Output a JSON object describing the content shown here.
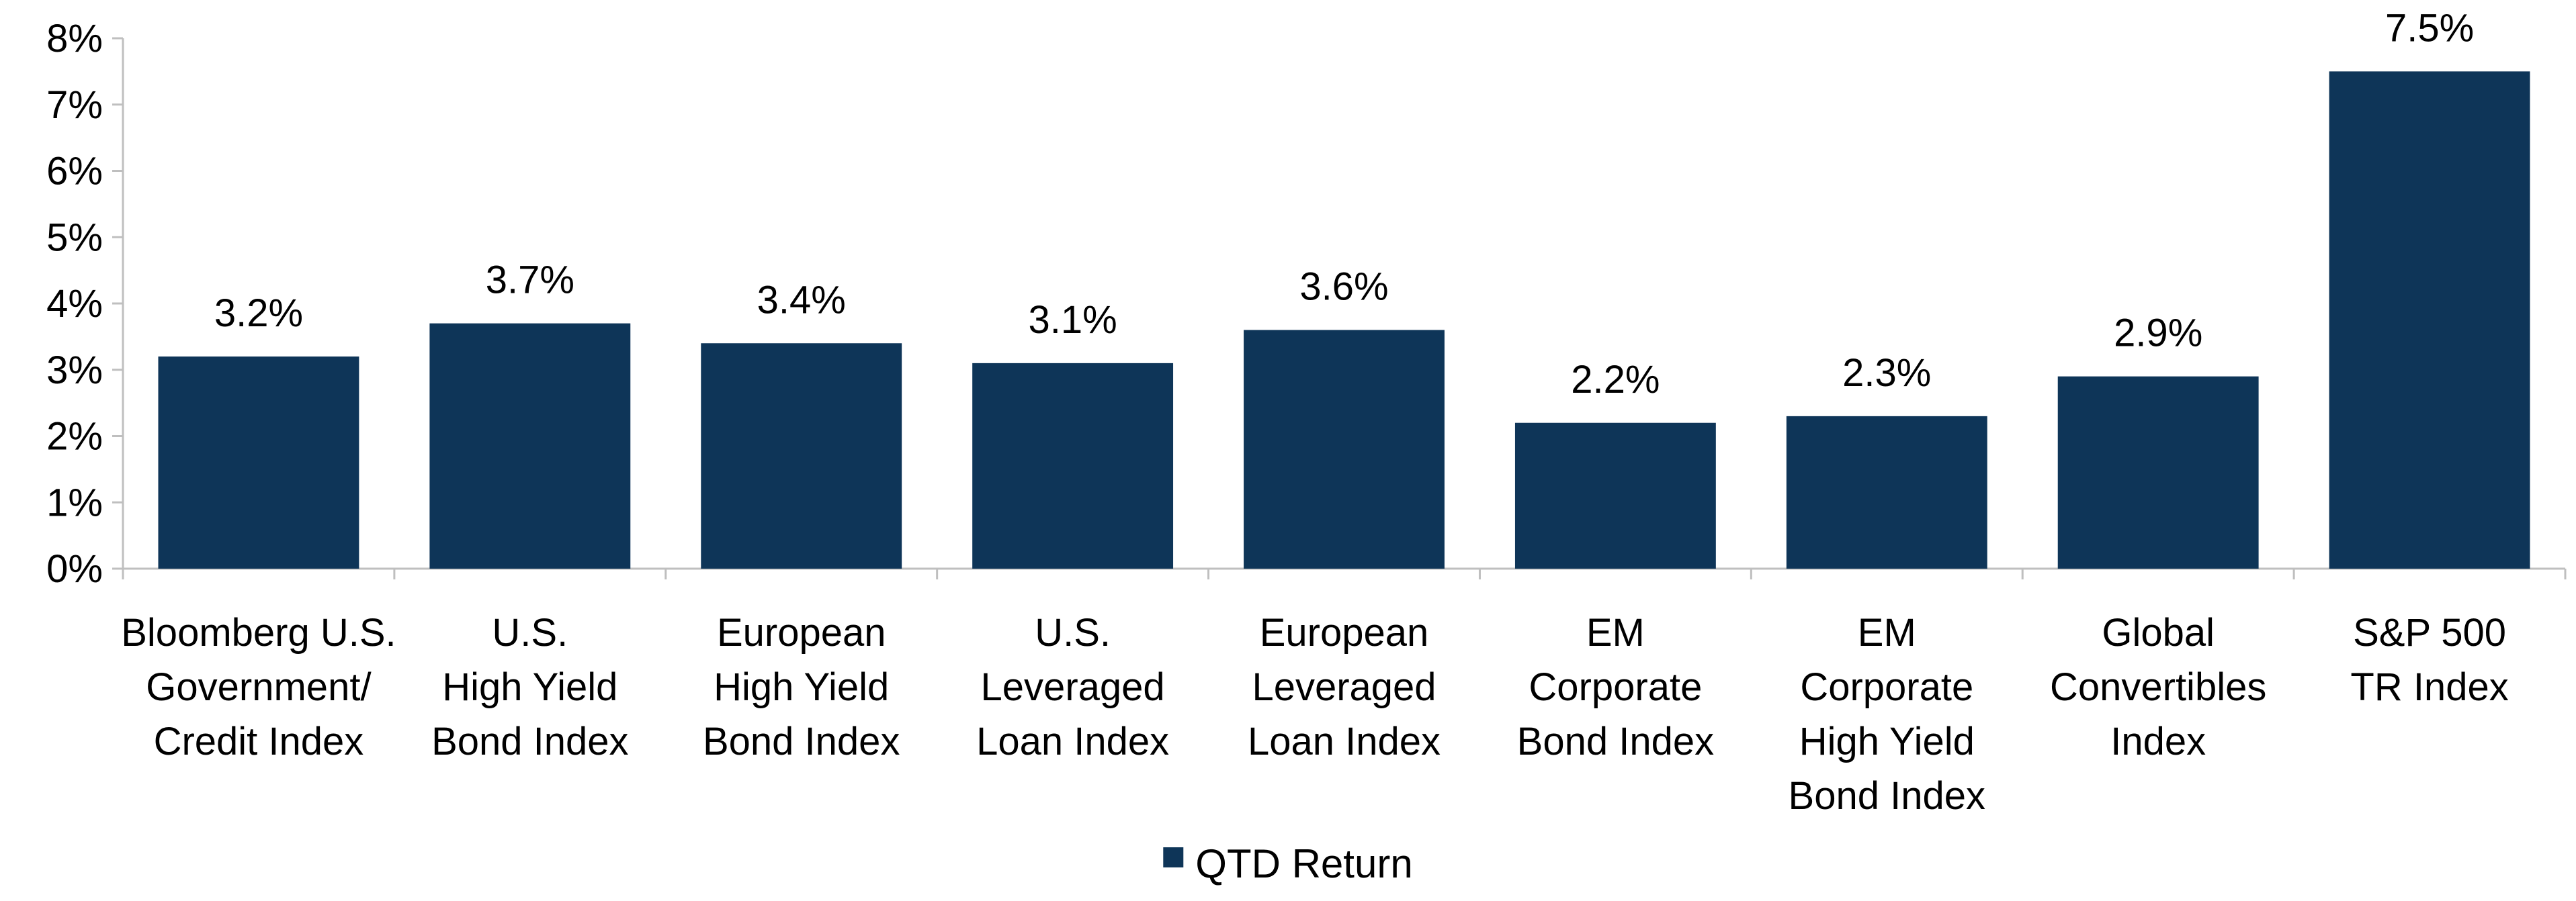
{
  "chart_data": {
    "type": "bar",
    "categories": [
      [
        "Bloomberg U.S.",
        "Government/",
        "Credit Index"
      ],
      [
        "U.S.",
        "High Yield",
        "Bond Index"
      ],
      [
        "European",
        "High Yield",
        "Bond Index"
      ],
      [
        "U.S.",
        "Leveraged",
        "Loan Index"
      ],
      [
        "European",
        "Leveraged",
        "Loan Index"
      ],
      [
        "EM",
        "Corporate",
        "Bond Index"
      ],
      [
        "EM",
        "Corporate",
        "High Yield",
        "Bond Index"
      ],
      [
        "Global",
        "Convertibles",
        "Index"
      ],
      [
        "S&P 500",
        "TR Index"
      ]
    ],
    "series": [
      {
        "name": "QTD Return",
        "values": [
          3.2,
          3.7,
          3.4,
          3.1,
          3.6,
          2.2,
          2.3,
          2.9,
          7.5
        ],
        "data_labels": [
          "3.2%",
          "3.7%",
          "3.4%",
          "3.1%",
          "3.6%",
          "2.2%",
          "2.3%",
          "2.9%",
          "7.5%"
        ],
        "color": "#0E3558"
      }
    ],
    "ylim": [
      0,
      8
    ],
    "y_ticks": [
      0,
      1,
      2,
      3,
      4,
      5,
      6,
      7,
      8
    ],
    "y_tick_labels": [
      "0%",
      "1%",
      "2%",
      "3%",
      "4%",
      "5%",
      "6%",
      "7%",
      "8%"
    ],
    "title": "",
    "xlabel": "",
    "ylabel": "",
    "grid": false,
    "legend_position": "bottom-center",
    "axis_color": "#BFBFBF"
  }
}
